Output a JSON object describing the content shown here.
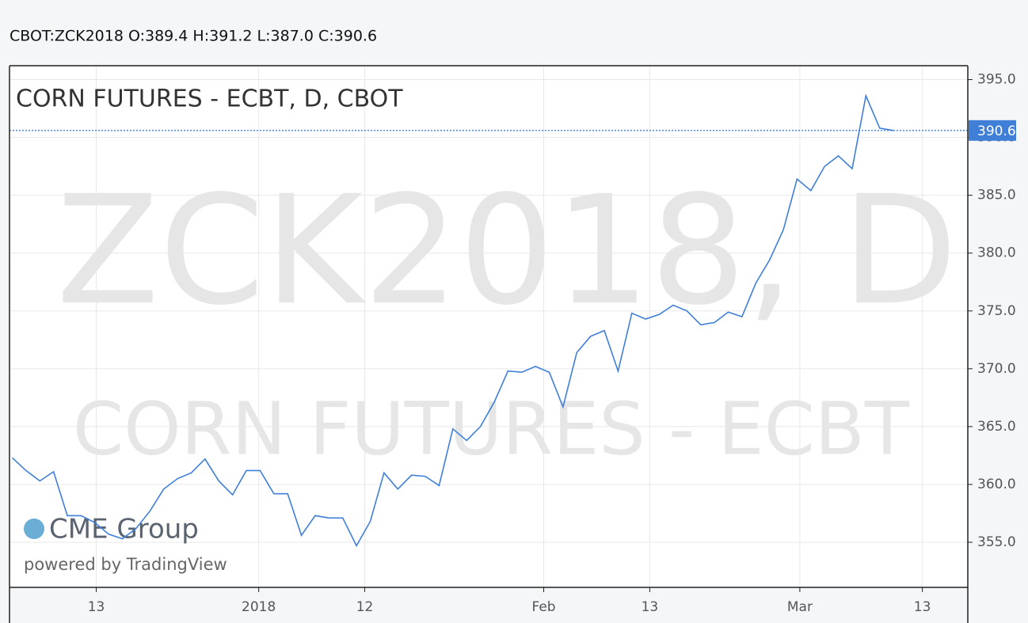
{
  "chart_data": {
    "type": "line",
    "header": "CBOT:ZCK2018 O:389.4 H:391.2 L:387.0 C:390.6",
    "title": "CORN FUTURES - ECBT, D, CBOT",
    "watermark": [
      "ZCK2018, D",
      "CORN FUTURES - ECBT"
    ],
    "logo": "CME Group",
    "credit": "powered by TradingView",
    "series": [
      {
        "name": "ZCK2018",
        "color": "#3f7fd8",
        "values": [
          362.3,
          361.2,
          360.3,
          361.1,
          357.3,
          357.3,
          356.7,
          355.7,
          355.3,
          356.2,
          357.7,
          359.6,
          360.5,
          361.0,
          362.2,
          360.3,
          359.1,
          361.2,
          361.2,
          359.2,
          359.2,
          355.6,
          357.3,
          357.1,
          357.1,
          354.7,
          356.8,
          361.0,
          359.6,
          360.8,
          360.7,
          359.9,
          364.8,
          363.8,
          365.0,
          367.1,
          369.8,
          369.7,
          370.2,
          369.7,
          366.7,
          371.4,
          372.8,
          373.3,
          369.8,
          374.8,
          374.3,
          374.7,
          375.5,
          375.0,
          373.8,
          374.0,
          374.9,
          374.5,
          377.4,
          379.4,
          382.0,
          386.4,
          385.4,
          387.5,
          388.4,
          387.3,
          393.6,
          390.8,
          390.6
        ]
      }
    ],
    "last_price": 390.6,
    "xlim": [
      -0.2,
      69.4
    ],
    "xticks": [
      {
        "value": 6.1,
        "label": "13"
      },
      {
        "value": 17.9,
        "label": "2018"
      },
      {
        "value": 25.6,
        "label": "12"
      },
      {
        "value": 38.6,
        "label": "Feb"
      },
      {
        "value": 46.3,
        "label": "13"
      },
      {
        "value": 57.2,
        "label": "Mar"
      },
      {
        "value": 66.1,
        "label": "13"
      }
    ],
    "ylim": [
      351.1,
      396.2
    ],
    "yticks": [
      {
        "value": 355,
        "label": "355.0"
      },
      {
        "value": 360,
        "label": "360.0"
      },
      {
        "value": 365,
        "label": "365.0"
      },
      {
        "value": 370,
        "label": "370.0"
      },
      {
        "value": 375,
        "label": "375.0"
      },
      {
        "value": 380,
        "label": "380.0"
      },
      {
        "value": 385,
        "label": "385.0"
      },
      {
        "value": 390,
        "label": "390.0"
      },
      {
        "value": 395,
        "label": "395.0"
      }
    ],
    "grid": true
  }
}
